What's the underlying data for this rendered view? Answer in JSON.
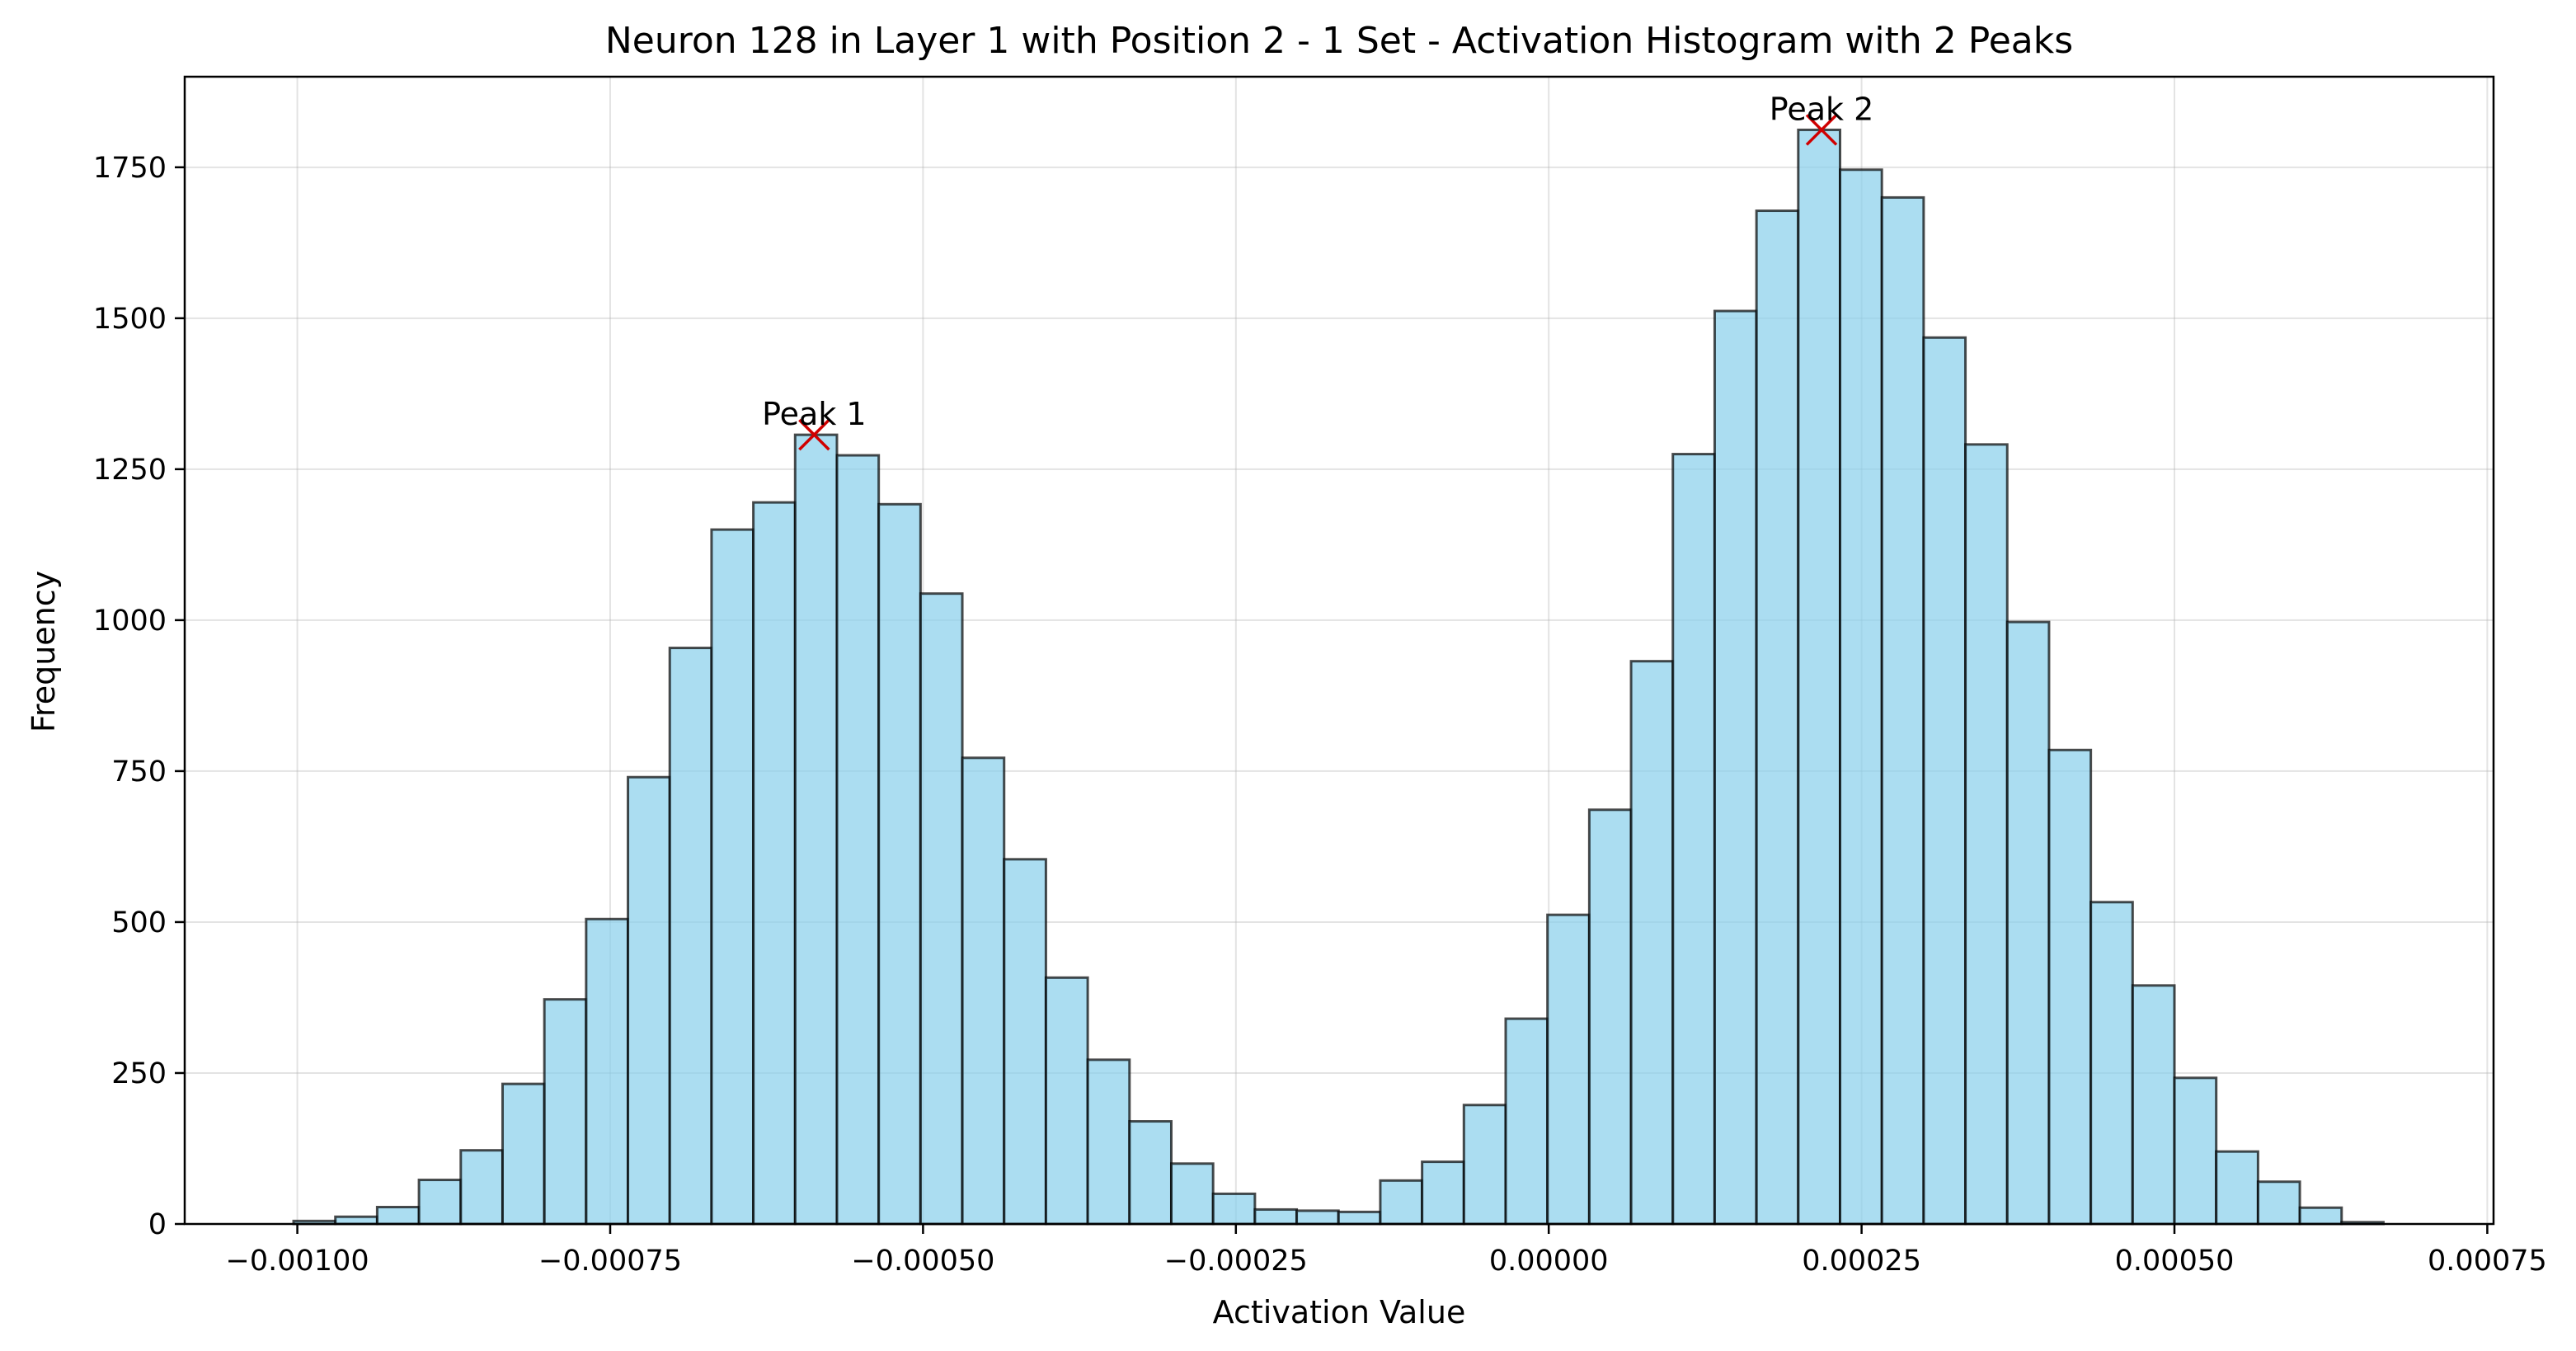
{
  "chart_data": {
    "type": "bar",
    "title": "Neuron 128 in Layer 1 with Position 2 - 1 Set - Activation Histogram with 2 Peaks",
    "xlabel": "Activation Value",
    "ylabel": "Frequency",
    "xlim": [
      -0.00109,
      0.000755
    ],
    "ylim": [
      0,
      1900
    ],
    "grid": true,
    "xticks": [
      -0.001,
      -0.00075,
      -0.0005,
      -0.00025,
      0,
      0.00025,
      0.0005,
      0.00075
    ],
    "xtick_labels": [
      "−0.00100",
      "−0.00075",
      "−0.00050",
      "−0.00025",
      "0.00000",
      "0.00025",
      "0.00050",
      "0.00075"
    ],
    "yticks": [
      0,
      250,
      500,
      750,
      1000,
      1250,
      1500,
      1750
    ],
    "ytick_labels": [
      "0",
      "250",
      "500",
      "750",
      "1000",
      "1250",
      "1500",
      "1750"
    ],
    "bin_start": -0.001003,
    "bin_width": 3.34e-05,
    "values": [
      5,
      12,
      28,
      73,
      122,
      232,
      372,
      505,
      740,
      954,
      1150,
      1195,
      1307,
      1273,
      1192,
      1044,
      772,
      604,
      408,
      272,
      170,
      100,
      50,
      24,
      22,
      20,
      72,
      103,
      197,
      340,
      512,
      686,
      932,
      1275,
      1512,
      1678,
      1812,
      1746,
      1700,
      1468,
      1291,
      997,
      785,
      533,
      395,
      242,
      120,
      70,
      27,
      3
    ],
    "peaks": [
      {
        "label": "Peak 1",
        "x": -0.000587,
        "y": 1307
      },
      {
        "label": "Peak 2",
        "x": 0.000218,
        "y": 1812
      }
    ],
    "colors": {
      "bar": "#87ceeb",
      "edge": "#000000",
      "marker": "#d00000"
    }
  }
}
